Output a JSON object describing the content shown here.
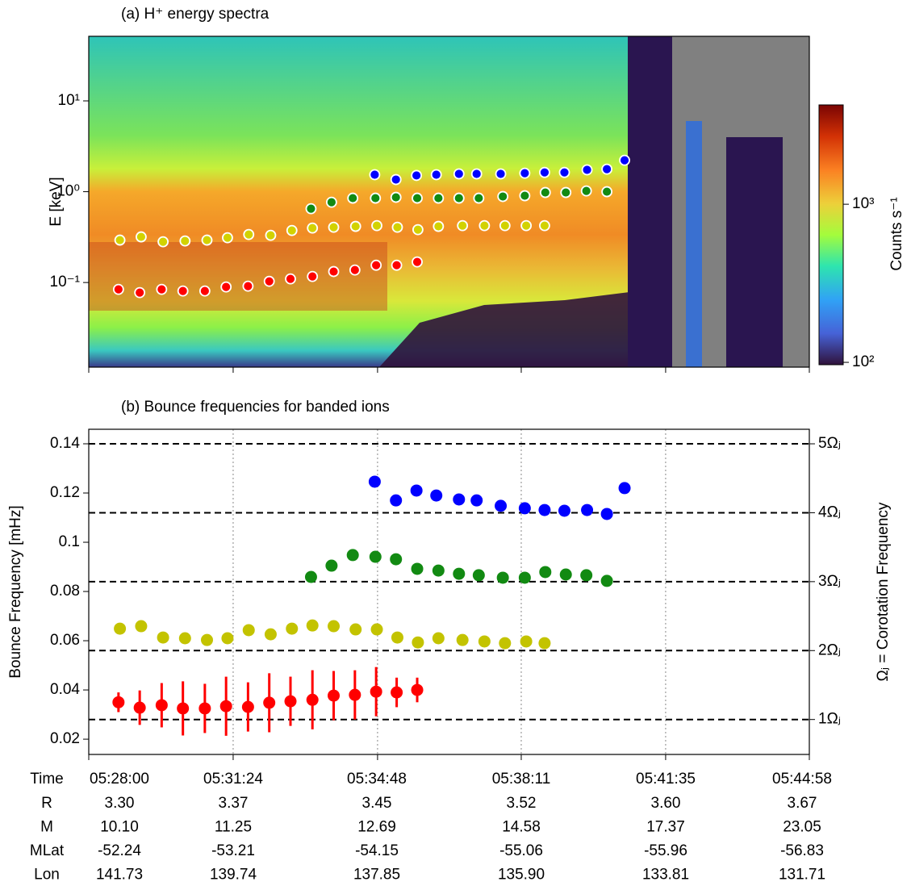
{
  "chart_data": [
    {
      "type": "scatter",
      "title": "(a) H⁺ energy spectra",
      "ylabel": "E [keV]",
      "yscale": "log",
      "xlim": [
        "05:28:00",
        "05:44:58"
      ],
      "xticks": [
        "05:28:00",
        "05:31:24",
        "05:34:48",
        "05:38:11",
        "05:41:35",
        "05:44:58"
      ],
      "ylim": [
        0.0117,
        51.4
      ],
      "yticks": [
        {
          "value": 0.1,
          "label": "10⁻¹"
        },
        {
          "value": 1,
          "label": "10⁰"
        },
        {
          "value": 10,
          "label": "10¹"
        }
      ],
      "colorbar": {
        "label": "Counts s⁻¹",
        "scale": "log",
        "lim": [
          96.6,
          4250
        ],
        "ticks": [
          {
            "value": 100,
            "label": "10²"
          },
          {
            "value": 1000,
            "label": "10³"
          }
        ]
      },
      "series": [
        {
          "color": "#ff0000",
          "x": [
            "05:28:42",
            "05:29:12",
            "05:29:43",
            "05:30:13",
            "05:30:44",
            "05:31:14",
            "05:31:45",
            "05:32:15",
            "05:32:45",
            "05:33:16",
            "05:33:46",
            "05:34:16",
            "05:34:46",
            "05:35:15",
            "05:35:44"
          ],
          "values": [
            0.084,
            0.0774,
            0.084,
            0.0807,
            0.0807,
            0.0894,
            0.0912,
            0.103,
            0.1097,
            0.1166,
            0.132,
            0.1374,
            0.155,
            0.155,
            0.1685
          ]
        },
        {
          "color": "#d2d200",
          "x": [
            "05:28:44",
            "05:29:14",
            "05:29:45",
            "05:30:16",
            "05:30:47",
            "05:31:16",
            "05:31:46",
            "05:32:17",
            "05:32:47",
            "05:33:16",
            "05:33:46",
            "05:34:17",
            "05:34:47",
            "05:35:16",
            "05:35:45",
            "05:36:14",
            "05:36:48",
            "05:37:19",
            "05:37:48",
            "05:38:18",
            "05:38:44"
          ],
          "values": [
            0.293,
            0.318,
            0.281,
            0.287,
            0.293,
            0.311,
            0.338,
            0.331,
            0.374,
            0.398,
            0.406,
            0.415,
            0.423,
            0.406,
            0.382,
            0.415,
            0.423,
            0.423,
            0.423,
            0.423,
            0.423
          ]
        },
        {
          "color": "#128a12",
          "x": [
            "05:33:14",
            "05:33:43",
            "05:34:13",
            "05:34:45",
            "05:35:14",
            "05:35:44",
            "05:36:14",
            "05:36:43",
            "05:37:11",
            "05:37:45",
            "05:38:16",
            "05:38:45",
            "05:39:14",
            "05:39:43",
            "05:40:12"
          ],
          "values": [
            0.65,
            0.766,
            0.849,
            0.849,
            0.867,
            0.849,
            0.849,
            0.849,
            0.849,
            0.885,
            0.903,
            0.98,
            0.98,
            1.02,
            1.0
          ]
        },
        {
          "color": "#0000ff",
          "x": [
            "05:34:44",
            "05:35:14",
            "05:35:43",
            "05:36:11",
            "05:36:43",
            "05:37:08",
            "05:37:42",
            "05:38:16",
            "05:38:44",
            "05:39:12",
            "05:39:44",
            "05:40:12",
            "05:40:37"
          ],
          "values": [
            1.54,
            1.36,
            1.51,
            1.54,
            1.57,
            1.57,
            1.57,
            1.6,
            1.63,
            1.63,
            1.74,
            1.77,
            2.22
          ]
        }
      ]
    },
    {
      "type": "errorbar",
      "title": "(b) Bounce frequencies for banded ions",
      "ylabel": "Bounce Frequency [mHz]",
      "y2label": "Ωⱼ = Corotation Frequency",
      "grid": true,
      "xlim": [
        "05:28:00",
        "05:44:58"
      ],
      "xticks": [
        "05:28:00",
        "05:31:24",
        "05:34:48",
        "05:38:11",
        "05:41:35",
        "05:44:58"
      ],
      "ylim": [
        0.0138,
        0.1459
      ],
      "yticks": [
        0.02,
        0.04,
        0.06,
        0.08,
        0.1,
        0.12,
        0.14
      ],
      "y2lim": [
        0.493,
        5.211
      ],
      "y2ticks": [
        {
          "value": 1,
          "label": "1Ωⱼ"
        },
        {
          "value": 2,
          "label": "2Ωⱼ"
        },
        {
          "value": 3,
          "label": "3Ωⱼ"
        },
        {
          "value": 4,
          "label": "4Ωⱼ"
        },
        {
          "value": 5,
          "label": "5Ωⱼ"
        }
      ],
      "series": [
        {
          "color": "#ff0000",
          "x": [
            "05:28:42",
            "05:29:12",
            "05:29:43",
            "05:30:13",
            "05:30:44",
            "05:31:14",
            "05:31:45",
            "05:32:15",
            "05:32:45",
            "05:33:16",
            "05:33:46",
            "05:34:16",
            "05:34:46",
            "05:35:15",
            "05:35:44"
          ],
          "values": [
            0.035,
            0.0328,
            0.0338,
            0.0325,
            0.0325,
            0.0334,
            0.0331,
            0.0348,
            0.0354,
            0.036,
            0.0377,
            0.038,
            0.0393,
            0.039,
            0.04
          ],
          "errors": [
            0.004,
            0.007,
            0.009,
            0.011,
            0.01,
            0.012,
            0.01,
            0.012,
            0.01,
            0.012,
            0.01,
            0.01,
            0.01,
            0.006,
            0.005
          ]
        },
        {
          "color": "#c3c300",
          "x": [
            "05:28:44",
            "05:29:14",
            "05:29:45",
            "05:30:16",
            "05:30:47",
            "05:31:16",
            "05:31:46",
            "05:32:17",
            "05:32:47",
            "05:33:16",
            "05:33:46",
            "05:34:17",
            "05:34:47",
            "05:35:16",
            "05:35:45",
            "05:36:14",
            "05:36:48",
            "05:37:19",
            "05:37:48",
            "05:38:18",
            "05:38:44"
          ],
          "values": [
            0.0649,
            0.0659,
            0.0613,
            0.061,
            0.0603,
            0.061,
            0.0643,
            0.0626,
            0.0649,
            0.0662,
            0.0659,
            0.0646,
            0.0646,
            0.0613,
            0.0593,
            0.061,
            0.0603,
            0.0597,
            0.059,
            0.0597,
            0.059
          ]
        },
        {
          "color": "#128a12",
          "x": [
            "05:33:14",
            "05:33:43",
            "05:34:13",
            "05:34:45",
            "05:35:14",
            "05:35:44",
            "05:36:14",
            "05:36:43",
            "05:37:11",
            "05:37:45",
            "05:38:16",
            "05:38:45",
            "05:39:14",
            "05:39:43",
            "05:40:12"
          ],
          "values": [
            0.0859,
            0.0905,
            0.0948,
            0.0941,
            0.0931,
            0.0892,
            0.0885,
            0.0872,
            0.0866,
            0.0856,
            0.0856,
            0.0879,
            0.0869,
            0.0866,
            0.0843
          ]
        },
        {
          "color": "#0000ff",
          "x": [
            "05:34:44",
            "05:35:14",
            "05:35:43",
            "05:36:11",
            "05:36:43",
            "05:37:08",
            "05:37:42",
            "05:38:16",
            "05:38:44",
            "05:39:12",
            "05:39:44",
            "05:40:12",
            "05:40:37"
          ],
          "values": [
            0.1246,
            0.117,
            0.121,
            0.119,
            0.1174,
            0.117,
            0.1148,
            0.1138,
            0.1131,
            0.1128,
            0.1131,
            0.1115,
            0.122
          ]
        }
      ],
      "xlabel": "Time",
      "table": [
        {
          "label": "R",
          "values": [
            "3.30",
            "3.37",
            "3.45",
            "3.52",
            "3.60",
            "3.67"
          ]
        },
        {
          "label": "M",
          "values": [
            "10.10",
            "11.25",
            "12.69",
            "14.58",
            "17.37",
            "23.05"
          ]
        },
        {
          "label": "MLat",
          "values": [
            "-52.24",
            "-53.21",
            "-54.15",
            "-55.06",
            "-55.96",
            "-56.83"
          ]
        },
        {
          "label": "Lon",
          "values": [
            "141.73",
            "139.74",
            "137.85",
            "135.90",
            "133.81",
            "131.71"
          ]
        }
      ]
    }
  ]
}
